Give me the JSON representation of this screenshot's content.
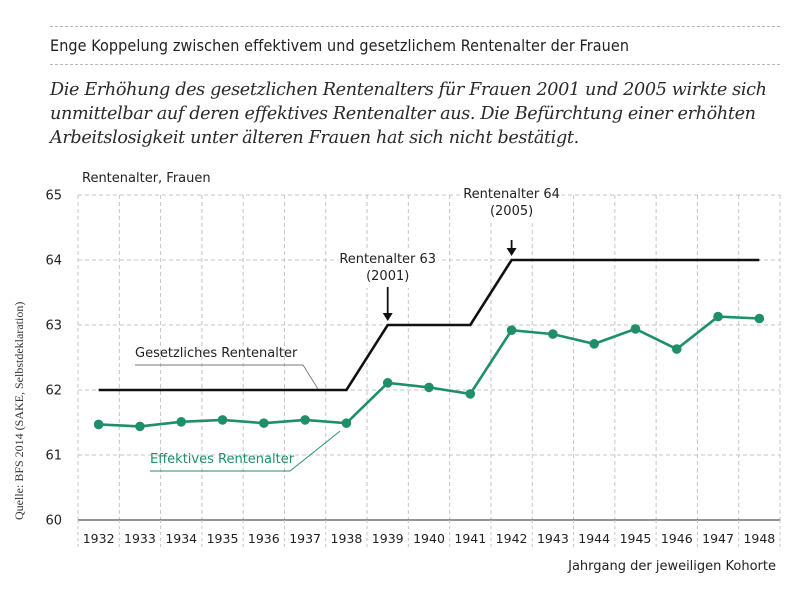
{
  "header": {
    "title": "Enge Koppelung zwischen effektivem und gesetzlichem Rentenalter der Frauen",
    "subtitle": "Die Erhöhung des gesetzlichen Rentenalters für Frauen 2001 und 2005 wirkte sich unmittelbar auf deren effektives Rentenalter aus. Die Befürchtung einer erhöhten Arbeitslosigkeit unter älteren Frauen hat sich nicht bestätigt."
  },
  "source": "Quelle: BFS 2014 (SAKE, Selbstdeklaration)",
  "colors": {
    "legal": "#111111",
    "effective": "#1f8f6a",
    "grid": "#c4c4c4"
  },
  "chart_data": {
    "type": "line",
    "ylabel": "Rentenalter, Frauen",
    "xlabel": "Jahrgang der jeweiligen Kohorte",
    "ylim": [
      60,
      65
    ],
    "yticks": [
      60,
      61,
      62,
      63,
      64,
      65
    ],
    "categories": [
      "1932",
      "1933",
      "1934",
      "1935",
      "1936",
      "1937",
      "1938",
      "1939",
      "1940",
      "1941",
      "1942",
      "1943",
      "1944",
      "1945",
      "1946",
      "1947",
      "1948"
    ],
    "grid": true,
    "series": [
      {
        "name": "Gesetzliches Rentenalter",
        "values": [
          62,
          62,
          62,
          62,
          62,
          62,
          62,
          63,
          63,
          63,
          64,
          64,
          64,
          64,
          64,
          64,
          64
        ],
        "markers": false
      },
      {
        "name": "Effektives Rentenalter",
        "values": [
          61.47,
          61.44,
          61.51,
          61.54,
          61.49,
          61.54,
          61.49,
          62.11,
          62.04,
          61.94,
          62.92,
          62.86,
          62.71,
          62.94,
          62.63,
          63.13,
          63.1
        ],
        "markers": true
      }
    ],
    "annotations": [
      {
        "line1": "Rentenalter 63",
        "line2": "(2001)",
        "category": "1939",
        "value": 63
      },
      {
        "line1": "Rentenalter 64",
        "line2": "(2005)",
        "category": "1942",
        "value": 64
      }
    ]
  }
}
